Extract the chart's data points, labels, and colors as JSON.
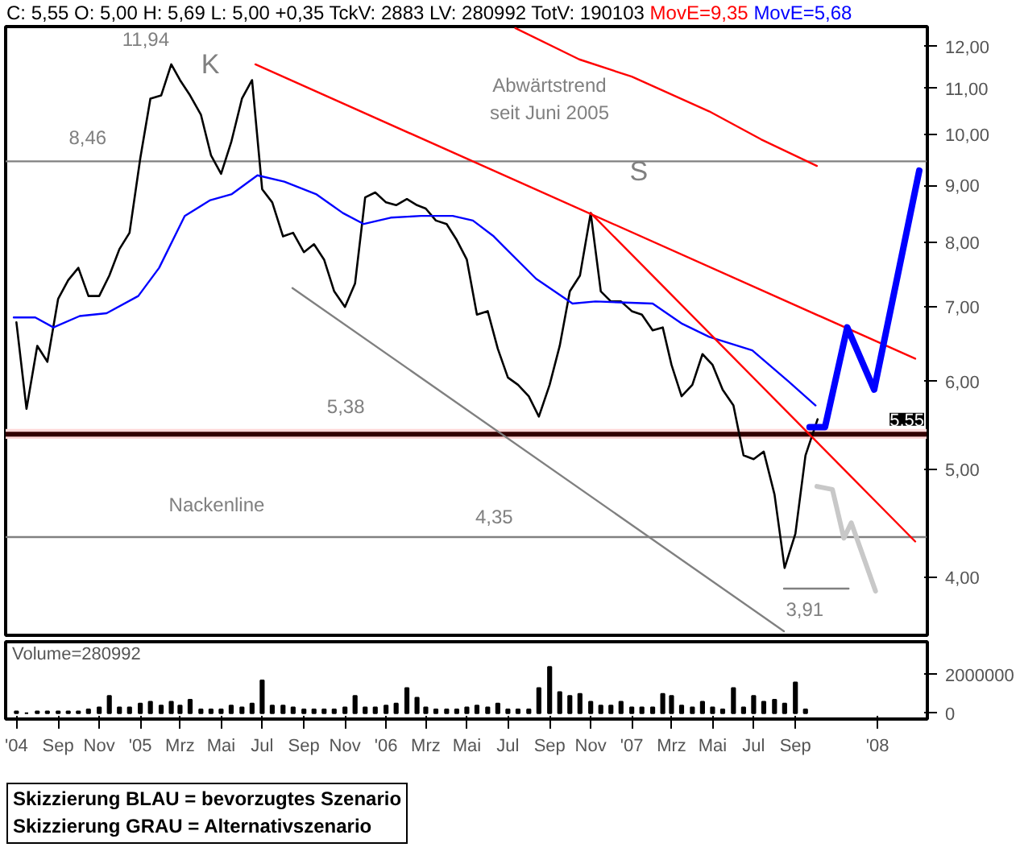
{
  "chart_data": [
    {
      "type": "line",
      "title": "C: 5,55 O: 5,00 H: 5,69 L: 5,00 +0,35 TckV: 2883 LV: 280992 TotV: 190103",
      "log": true,
      "legend": "top",
      "tick_labels": "y",
      "xlim": [
        "2004-06-15",
        "2008-03-15"
      ],
      "ylim": [
        3.55,
        12.5
      ],
      "yticks": [
        {
          "value": 4,
          "label": "4,00"
        },
        {
          "value": 5,
          "label": "5,00"
        },
        {
          "value": 6,
          "label": "6,00"
        },
        {
          "value": 7,
          "label": "7,00"
        },
        {
          "value": 8,
          "label": "8,00"
        },
        {
          "value": 9,
          "label": "9,00"
        },
        {
          "value": 10,
          "label": "10,00"
        },
        {
          "value": 11,
          "label": "11,00"
        },
        {
          "value": 12,
          "label": "12,00"
        }
      ],
      "series": [
        {
          "color": "#000000",
          "x": [
            "2004-07-01",
            "2004-07-16",
            "2004-08-01",
            "2004-08-16",
            "2004-09-01",
            "2004-09-16",
            "2004-10-01",
            "2004-10-16",
            "2004-11-01",
            "2004-11-16",
            "2004-12-01",
            "2004-12-16",
            "2005-01-01",
            "2005-01-16",
            "2005-02-01",
            "2005-02-16",
            "2005-03-01",
            "2005-03-16",
            "2005-04-01",
            "2005-04-16",
            "2005-05-01",
            "2005-05-16",
            "2005-06-01",
            "2005-06-16",
            "2005-07-01",
            "2005-07-16",
            "2005-08-01",
            "2005-08-16",
            "2005-09-01",
            "2005-09-16",
            "2005-10-01",
            "2005-10-16",
            "2005-11-01",
            "2005-11-16",
            "2005-12-01",
            "2005-12-16",
            "2006-01-01",
            "2006-01-16",
            "2006-02-01",
            "2006-02-16",
            "2006-03-01",
            "2006-03-16",
            "2006-04-01",
            "2006-04-16",
            "2006-05-01",
            "2006-05-16",
            "2006-06-01",
            "2006-06-16",
            "2006-07-01",
            "2006-07-16",
            "2006-08-01",
            "2006-08-16",
            "2006-09-01",
            "2006-09-16",
            "2006-10-01",
            "2006-10-16",
            "2006-11-01",
            "2006-11-16",
            "2006-12-01",
            "2006-12-16",
            "2007-01-01",
            "2007-01-16",
            "2007-02-01",
            "2007-02-16",
            "2007-03-01",
            "2007-03-16",
            "2007-04-01",
            "2007-04-16",
            "2007-05-01",
            "2007-05-16",
            "2007-06-01",
            "2007-06-16",
            "2007-07-01",
            "2007-07-16",
            "2007-08-01",
            "2007-08-16",
            "2007-09-01",
            "2007-09-16",
            "2007-10-04"
          ],
          "values": [
            6.78,
            5.67,
            6.46,
            6.25,
            7.12,
            7.4,
            7.59,
            7.16,
            7.16,
            7.47,
            7.89,
            8.16,
            9.52,
            10.77,
            10.84,
            11.56,
            11.19,
            10.84,
            10.42,
            9.58,
            9.22,
            9.84,
            10.77,
            11.19,
            8.93,
            8.69,
            8.1,
            8.16,
            7.84,
            7.97,
            7.72,
            7.23,
            7.0,
            7.35,
            8.78,
            8.87,
            8.69,
            8.64,
            8.75,
            8.64,
            8.58,
            8.37,
            8.31,
            8.04,
            7.72,
            6.89,
            6.94,
            6.42,
            6.05,
            5.96,
            5.82,
            5.58,
            5.96,
            6.46,
            7.23,
            7.47,
            8.5,
            7.23,
            7.08,
            7.08,
            6.94,
            6.89,
            6.67,
            6.71,
            6.21,
            5.82,
            5.96,
            6.35,
            6.21,
            5.9,
            5.71,
            5.15,
            5.11,
            5.19,
            4.75,
            4.08,
            4.38,
            5.15,
            5.55
          ]
        },
        {
          "name": "MovE=9,35",
          "color": "#ff0000",
          "x": [
            "2006-07-12",
            "2006-10-15",
            "2007-01-01",
            "2007-04-26",
            "2007-07-12",
            "2007-10-03"
          ],
          "values": [
            12.46,
            11.68,
            11.27,
            10.49,
            9.9,
            9.37
          ]
        },
        {
          "name": "MovE=5,68",
          "color": "#0000ff",
          "x": [
            "2004-06-27",
            "2004-07-29",
            "2004-08-25",
            "2004-10-03",
            "2004-11-12",
            "2004-12-29",
            "2005-01-29",
            "2005-03-08",
            "2005-04-15",
            "2005-05-17",
            "2005-06-24",
            "2005-08-03",
            "2005-09-19",
            "2005-10-29",
            "2005-11-29",
            "2006-01-08",
            "2006-02-22",
            "2006-04-10",
            "2006-05-10",
            "2006-06-10",
            "2006-06-26",
            "2006-08-12",
            "2006-10-05",
            "2006-11-08",
            "2007-02-01",
            "2007-03-17",
            "2007-04-26",
            "2007-06-29",
            "2007-08-22",
            "2007-10-01"
          ],
          "values": [
            6.85,
            6.85,
            6.71,
            6.87,
            6.91,
            7.16,
            7.59,
            8.45,
            8.73,
            8.84,
            9.19,
            9.07,
            8.84,
            8.5,
            8.31,
            8.42,
            8.45,
            8.45,
            8.37,
            8.1,
            7.92,
            7.42,
            7.05,
            7.08,
            7.05,
            6.76,
            6.58,
            6.4,
            6.0,
            5.71
          ]
        },
        {
          "color": "#ff0000",
          "x": [
            "2005-06-21",
            "2008-02-26"
          ],
          "values": [
            11.56,
            6.29
          ]
        },
        {
          "color": "#ff0000",
          "x": [
            "2006-11-01",
            "2008-02-26"
          ],
          "values": [
            8.5,
            4.31
          ]
        },
        {
          "color": "#808080",
          "x": [
            "2005-08-15",
            "2007-08-15"
          ],
          "values": [
            7.28,
            3.58
          ]
        },
        {
          "color": "#808080",
          "x": [
            "2007-08-15",
            "2007-11-19"
          ],
          "values": [
            3.91,
            3.91
          ]
        },
        {
          "color": "#0000ff",
          "x": [
            "2007-09-22",
            "2007-10-15",
            "2007-11-17",
            "2007-12-27",
            "2008-03-03"
          ],
          "values": [
            5.46,
            5.46,
            6.71,
            5.9,
            9.28
          ]
        },
        {
          "color": "#c8c8c8",
          "x": [
            "2007-10-03",
            "2007-10-26",
            "2007-11-12",
            "2007-11-23",
            "2007-12-29"
          ],
          "values": [
            4.83,
            4.8,
            4.34,
            4.48,
            3.89
          ]
        }
      ],
      "ref_lines": [
        {
          "axis": "y",
          "value": 9.46,
          "color": "#808080"
        },
        {
          "axis": "y",
          "value": 5.38,
          "color": "#330000"
        },
        {
          "axis": "y",
          "value": 4.35,
          "color": "#808080"
        }
      ],
      "bands": [
        {
          "axis": "y",
          "from": 5.33,
          "to": 5.44,
          "color": "#ffd8d8"
        }
      ],
      "annotations": [
        "11,94",
        "K",
        "8,46",
        "S",
        "Abwärtstrend\nseit Juni 2005",
        "5,38",
        "Nackenline",
        "4,35",
        "3,91",
        "5,55"
      ]
    },
    {
      "type": "bar",
      "title": "Volume=280992",
      "color": "#000000",
      "xlim": [
        "2004-06-15",
        "2008-03-15"
      ],
      "ylim": [
        -300000,
        3700000
      ],
      "yticks": [
        0,
        2000000
      ],
      "xticks": [
        {
          "value": "2004-07-01",
          "label": "'04"
        },
        {
          "value": "2004-09-01",
          "label": "Sep"
        },
        {
          "value": "2004-11-01",
          "label": "Nov"
        },
        {
          "value": "2005-01-01",
          "label": "'05"
        },
        {
          "value": "2005-03-01",
          "label": "Mrz"
        },
        {
          "value": "2005-05-01",
          "label": "Mai"
        },
        {
          "value": "2005-07-01",
          "label": "Jul"
        },
        {
          "value": "2005-09-01",
          "label": "Sep"
        },
        {
          "value": "2005-11-01",
          "label": "Nov"
        },
        {
          "value": "2006-01-01",
          "label": "'06"
        },
        {
          "value": "2006-03-01",
          "label": "Mrz"
        },
        {
          "value": "2006-05-01",
          "label": "Mai"
        },
        {
          "value": "2006-07-01",
          "label": "Jul"
        },
        {
          "value": "2006-09-01",
          "label": "Sep"
        },
        {
          "value": "2006-11-01",
          "label": "Nov"
        },
        {
          "value": "2007-01-01",
          "label": "'07"
        },
        {
          "value": "2007-03-01",
          "label": "Mrz"
        },
        {
          "value": "2007-05-01",
          "label": "Mai"
        },
        {
          "value": "2007-07-01",
          "label": "Jul"
        },
        {
          "value": "2007-09-01",
          "label": "Sep"
        },
        {
          "value": "2008-01-01",
          "label": "'08"
        }
      ],
      "x": [
        "2004-07-01",
        "2004-07-16",
        "2004-08-01",
        "2004-08-16",
        "2004-09-01",
        "2004-09-16",
        "2004-10-01",
        "2004-10-16",
        "2004-11-01",
        "2004-11-16",
        "2004-12-01",
        "2004-12-16",
        "2005-01-01",
        "2005-01-16",
        "2005-02-01",
        "2005-02-16",
        "2005-03-01",
        "2005-03-16",
        "2005-04-01",
        "2005-04-16",
        "2005-05-01",
        "2005-05-16",
        "2005-06-01",
        "2005-06-16",
        "2005-07-01",
        "2005-07-16",
        "2005-08-01",
        "2005-08-16",
        "2005-09-01",
        "2005-09-16",
        "2005-10-01",
        "2005-10-16",
        "2005-11-01",
        "2005-11-16",
        "2005-12-01",
        "2005-12-16",
        "2006-01-01",
        "2006-01-16",
        "2006-02-01",
        "2006-02-16",
        "2006-03-01",
        "2006-03-16",
        "2006-04-01",
        "2006-04-16",
        "2006-05-01",
        "2006-05-16",
        "2006-06-01",
        "2006-06-16",
        "2006-07-01",
        "2006-07-16",
        "2006-08-01",
        "2006-08-16",
        "2006-09-01",
        "2006-09-16",
        "2006-10-01",
        "2006-10-16",
        "2006-11-01",
        "2006-11-16",
        "2006-12-01",
        "2006-12-16",
        "2007-01-01",
        "2007-01-16",
        "2007-02-01",
        "2007-02-16",
        "2007-03-01",
        "2007-03-16",
        "2007-04-01",
        "2007-04-16",
        "2007-05-01",
        "2007-05-16",
        "2007-06-01",
        "2007-06-16",
        "2007-07-01",
        "2007-07-16",
        "2007-08-01",
        "2007-08-16",
        "2007-09-01",
        "2007-09-16"
      ],
      "values": [
        100000,
        0,
        100000,
        100000,
        100000,
        100000,
        100000,
        200000,
        300000,
        900000,
        300000,
        300000,
        500000,
        600000,
        400000,
        600000,
        400000,
        700000,
        200000,
        200000,
        200000,
        400000,
        300000,
        500000,
        1700000,
        400000,
        400000,
        300000,
        200000,
        200000,
        200000,
        200000,
        300000,
        900000,
        300000,
        300000,
        400000,
        500000,
        1300000,
        800000,
        300000,
        200000,
        200000,
        200000,
        300000,
        400000,
        300000,
        500000,
        200000,
        200000,
        200000,
        1300000,
        2400000,
        1100000,
        900000,
        1000000,
        600000,
        400000,
        400000,
        600000,
        300000,
        300000,
        300000,
        1000000,
        900000,
        400000,
        300000,
        600000,
        300000,
        200000,
        1300000,
        300000,
        900000,
        600000,
        700000,
        500000,
        1600000,
        200000
      ],
      "annotations": [
        "Skizzierung BLAU = bevorzugtes Szenario",
        "Skizzierung GRAU = Alternativszenario"
      ]
    }
  ]
}
